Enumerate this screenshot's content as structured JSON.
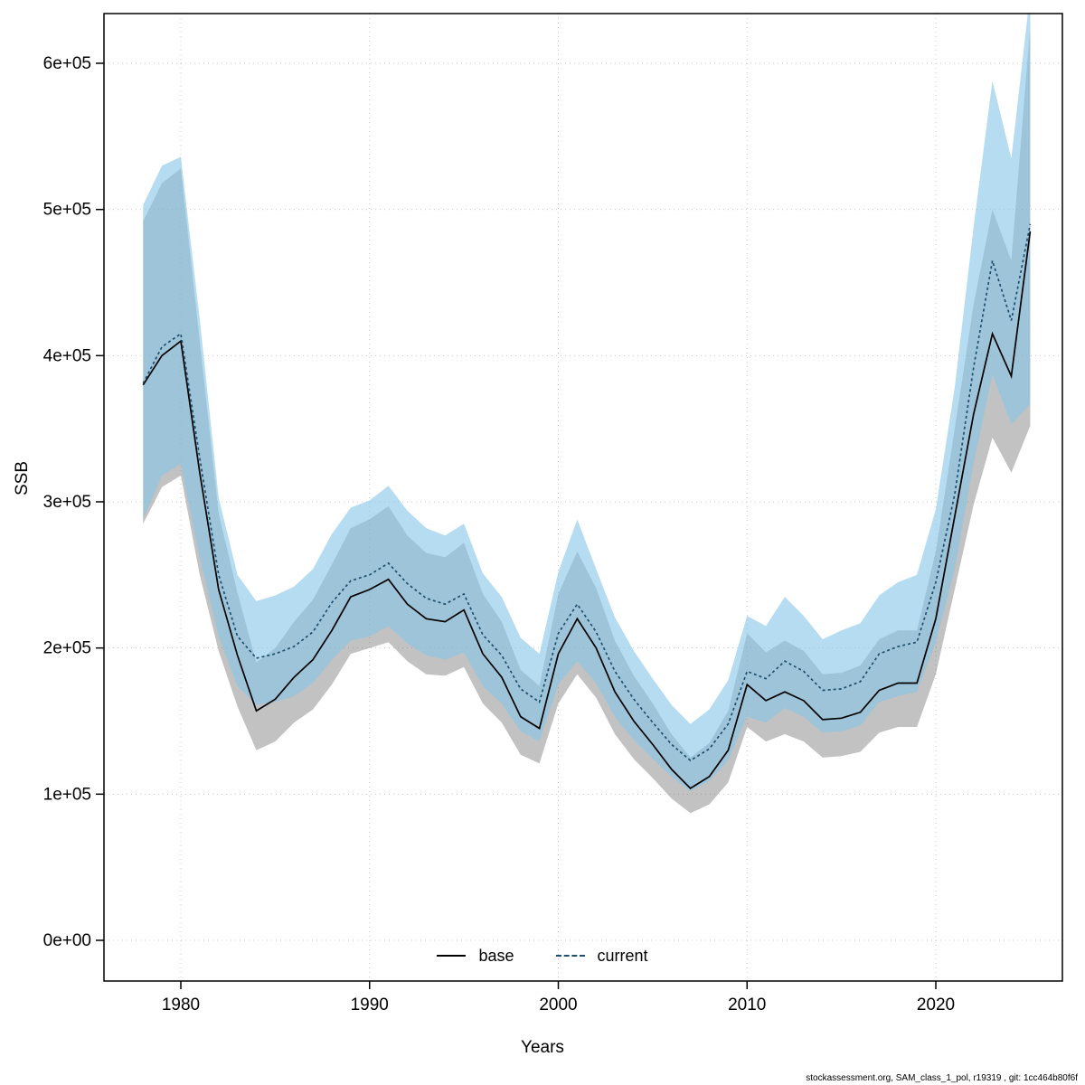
{
  "footer": {
    "text": "stockassessment.org, SAM_class_1_pol, r19319 , git: 1cc464b80f6f"
  },
  "chart_data": {
    "type": "line",
    "title": "",
    "xlabel": "Years",
    "ylabel": "SSB",
    "grid": true,
    "legend": {
      "position": "bottom-center",
      "entries": [
        {
          "label": "base",
          "style": "solid",
          "color": "#000000"
        },
        {
          "label": "current",
          "style": "dotted",
          "color": "#1d4f6e"
        }
      ]
    },
    "xlim": [
      1977.5,
      2025.8
    ],
    "ylim": [
      0,
      600000
    ],
    "xticks": [
      1980,
      1990,
      2000,
      2010,
      2020
    ],
    "yticks": [
      0,
      100000,
      200000,
      300000,
      400000,
      500000,
      600000
    ],
    "ytick_labels": [
      "0e+00",
      "1e+05",
      "2e+05",
      "3e+05",
      "4e+05",
      "5e+05",
      "6e+05"
    ],
    "x": [
      1978,
      1979,
      1980,
      1981,
      1982,
      1983,
      1984,
      1985,
      1986,
      1987,
      1988,
      1989,
      1990,
      1991,
      1992,
      1993,
      1994,
      1995,
      1996,
      1997,
      1998,
      1999,
      2000,
      2001,
      2002,
      2003,
      2004,
      2005,
      2006,
      2007,
      2008,
      2009,
      2010,
      2011,
      2012,
      2013,
      2014,
      2015,
      2016,
      2017,
      2018,
      2019,
      2020,
      2021,
      2022,
      2023,
      2024,
      2025
    ],
    "series": [
      {
        "name": "base",
        "line_color": "#000000",
        "line_style": "solid",
        "band_color": "#6e6e6e",
        "band_opacity": 0.42,
        "values": [
          380000,
          400000,
          410000,
          320000,
          240000,
          195000,
          157000,
          165000,
          180000,
          192000,
          212000,
          235000,
          240000,
          247000,
          230000,
          220000,
          218000,
          226000,
          196000,
          180000,
          153000,
          145000,
          196000,
          220000,
          200000,
          170000,
          150000,
          134000,
          117000,
          104000,
          112000,
          130000,
          175000,
          164000,
          170000,
          164000,
          151000,
          152000,
          156000,
          171000,
          176000,
          176000,
          220000,
          290000,
          360000,
          415000,
          386000,
          485000
        ],
        "lower": [
          285000,
          310000,
          318000,
          250000,
          198000,
          160000,
          130000,
          136000,
          149000,
          158000,
          175000,
          196000,
          200000,
          204000,
          191000,
          182000,
          181000,
          187000,
          162000,
          149000,
          127000,
          121000,
          162000,
          182000,
          166000,
          141000,
          124000,
          111000,
          97000,
          87000,
          93000,
          108000,
          146000,
          136000,
          141000,
          136000,
          125000,
          126000,
          129000,
          142000,
          146000,
          146000,
          182000,
          240000,
          298000,
          344000,
          320000,
          352000
        ],
        "upper": [
          492000,
          518000,
          528000,
          410000,
          292000,
          238000,
          190000,
          200000,
          218000,
          233000,
          257000,
          282000,
          288000,
          297000,
          277000,
          265000,
          262000,
          272000,
          237000,
          218000,
          185000,
          174000,
          237000,
          266000,
          241000,
          205000,
          181000,
          162000,
          141000,
          125000,
          135000,
          157000,
          210000,
          197000,
          205000,
          198000,
          182000,
          183000,
          188000,
          206000,
          212000,
          212000,
          266000,
          350000,
          435000,
          500000,
          465000,
          625000
        ]
      },
      {
        "name": "current",
        "line_color": "#1d4f6e",
        "line_style": "dotted",
        "band_color": "#86c5e8",
        "band_opacity": 0.6,
        "values": [
          381000,
          406000,
          415000,
          330000,
          250000,
          208000,
          193000,
          196000,
          201000,
          211000,
          231000,
          246000,
          250000,
          258000,
          244000,
          234000,
          230000,
          237000,
          209000,
          195000,
          172000,
          163000,
          210000,
          230000,
          211000,
          184000,
          165000,
          149000,
          134000,
          123000,
          131000,
          148000,
          184000,
          179000,
          191000,
          184000,
          171000,
          172000,
          177000,
          196000,
          201000,
          204000,
          245000,
          305000,
          392000,
          465000,
          424000,
          490000
        ],
        "lower": [
          288000,
          318000,
          326000,
          262000,
          208000,
          174000,
          161000,
          163000,
          167000,
          176000,
          192000,
          205000,
          208000,
          215000,
          203000,
          195000,
          192000,
          197000,
          174000,
          162000,
          143000,
          136000,
          175000,
          191000,
          176000,
          153000,
          137000,
          124000,
          112000,
          102000,
          109000,
          123000,
          153000,
          149000,
          159000,
          153000,
          142000,
          143000,
          147000,
          163000,
          167000,
          170000,
          204000,
          254000,
          326000,
          387000,
          353000,
          367000
        ],
        "upper": [
          503000,
          530000,
          536000,
          425000,
          303000,
          250000,
          232000,
          236000,
          242000,
          254000,
          278000,
          296000,
          301000,
          311000,
          294000,
          282000,
          277000,
          285000,
          251000,
          235000,
          207000,
          196000,
          252000,
          288000,
          254000,
          221000,
          198000,
          179000,
          161000,
          148000,
          158000,
          178000,
          222000,
          215000,
          235000,
          222000,
          206000,
          212000,
          217000,
          236000,
          245000,
          250000,
          295000,
          378000,
          488000,
          588000,
          535000,
          648000
        ]
      }
    ]
  }
}
